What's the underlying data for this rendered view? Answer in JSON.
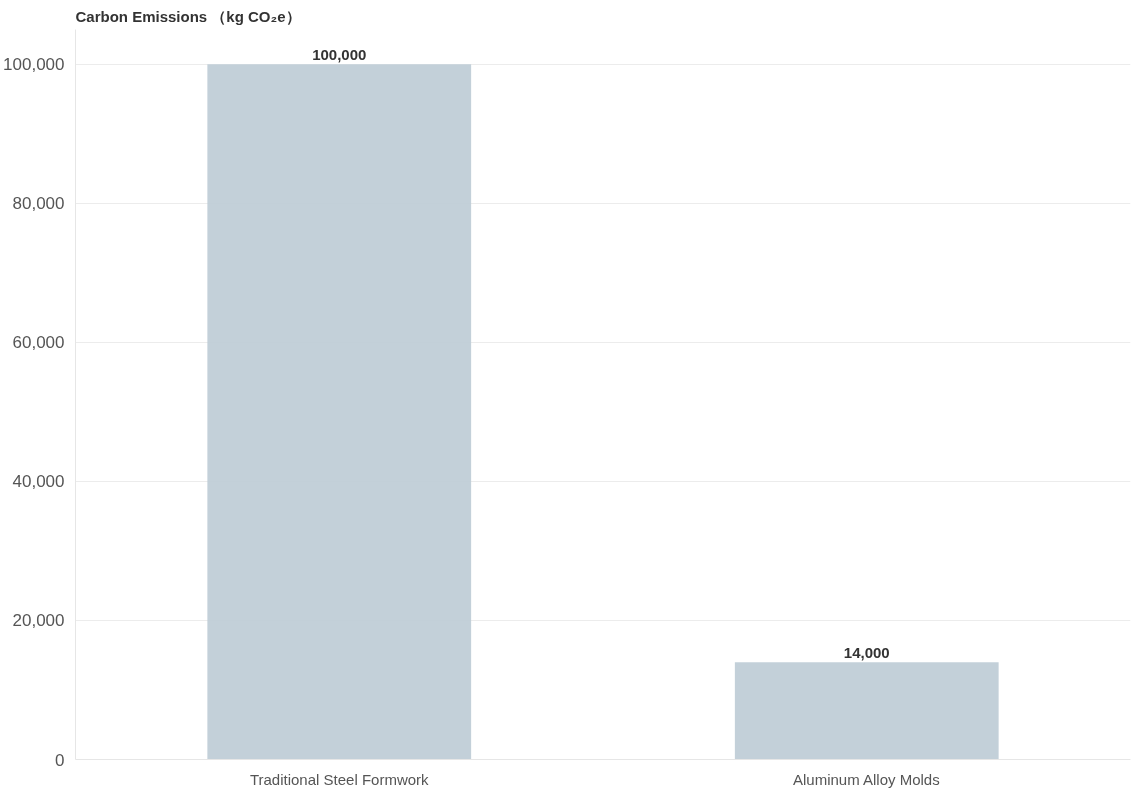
{
  "chart_data": {
    "type": "bar",
    "title": "Carbon Emissions （kg CO₂e）",
    "categories": [
      "Traditional Steel Formwork",
      "Aluminum Alloy Molds"
    ],
    "values": [
      100000,
      14000
    ],
    "color": "#c0ced7",
    "ylim": [
      0,
      105000
    ],
    "yticks": [
      0,
      {
        "value": 20000,
        "label": "20,000"
      },
      {
        "value": 40000,
        "label": "40,000"
      },
      {
        "value": 60000,
        "label": "60,000"
      },
      {
        "value": 80000,
        "label": "80,000"
      },
      {
        "value": 100000,
        "label": "100,000"
      }
    ],
    "grid": "y",
    "value_labels": [
      "100,000",
      "14,000"
    ]
  }
}
